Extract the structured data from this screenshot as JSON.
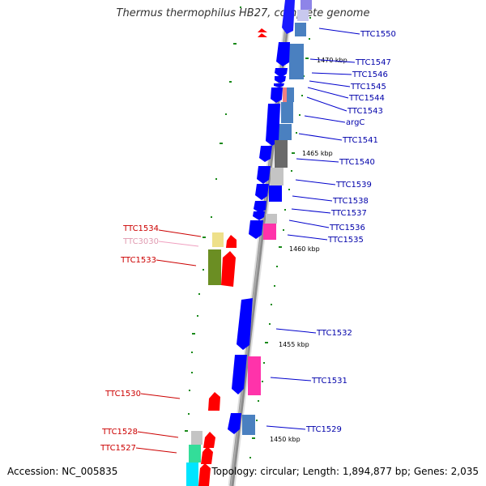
{
  "title": "Thermus thermophilus HB27, complete genome",
  "footer": {
    "accession": "Accession: NC_005835",
    "topology": "Topology: circular; Length: 1,894,877 bp; Genes: 2,035"
  },
  "kbp_labels": [
    "1470 kbp",
    "1465 kbp",
    "1460 kbp",
    "1455 kbp",
    "1450 kbp"
  ],
  "right_genes": [
    "TTC1550",
    "TTC1547",
    "TTC1546",
    "TTC1545",
    "TTC1544",
    "TTC1543",
    "argC",
    "TTC1541",
    "TTC1540",
    "TTC1539",
    "TTC1538",
    "TTC1537",
    "TTC1536",
    "TTC1535",
    "TTC1532",
    "TTC1531",
    "TTC1529"
  ],
  "left_genes": [
    "TTC1534",
    "TTC3030",
    "TTC1533",
    "TTC1530",
    "TTC1528",
    "TTC1527"
  ],
  "colors": {
    "forward_strand": "#0000ff",
    "reverse_strand": "#ff0000",
    "backbone": "#808080",
    "steel_blue": "#4a7fb5",
    "grey": "#6a6a6a",
    "magenta": "#ff33aa",
    "olive": "#6b8e23",
    "khaki": "#eee08a",
    "cyan": "#00e5ff",
    "teal": "#33dd99"
  }
}
